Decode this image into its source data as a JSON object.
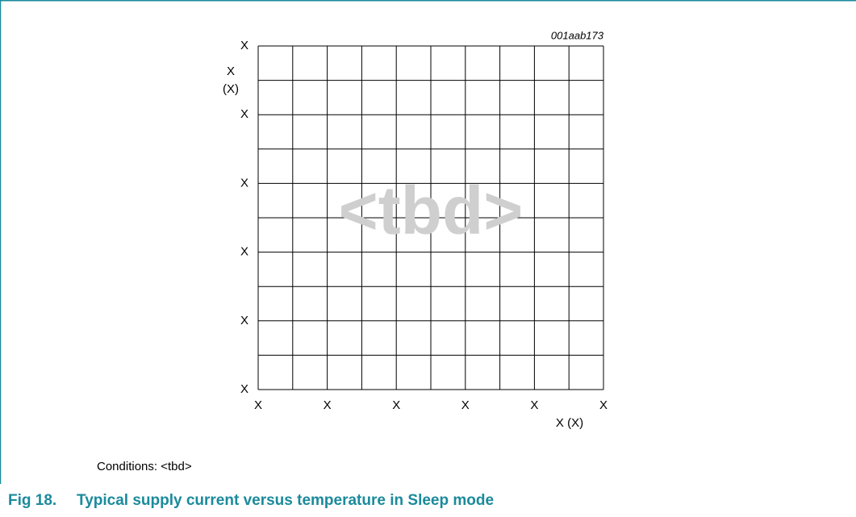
{
  "figure": {
    "id": "001aab173",
    "y_axis_label": [
      "X",
      "(X)"
    ],
    "y_ticks": [
      "X",
      "X",
      "X",
      "X",
      "X",
      "X"
    ],
    "x_ticks": [
      "X",
      "X",
      "X",
      "X",
      "X",
      "X"
    ],
    "x_axis_label": "X (X)",
    "watermark": "<tbd>",
    "conditions": "Conditions: <tbd>"
  },
  "caption": {
    "number": "Fig 18.",
    "title": "Typical supply current versus temperature in Sleep mode"
  }
}
